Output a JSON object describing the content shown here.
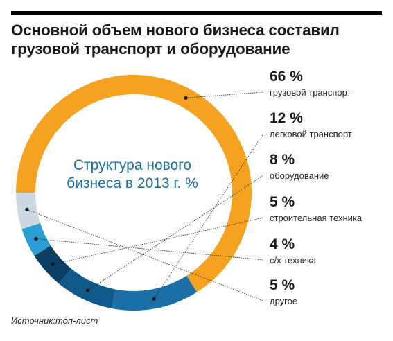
{
  "title_lines": [
    "Основной объем нового бизнеса составил",
    "грузовой транспорт и оборудование"
  ],
  "center_lines": [
    "Структура нового",
    "бизнеса в 2013 г. %"
  ],
  "source": "Источник:топ-лист",
  "chart_data": {
    "type": "pie",
    "variant": "donut",
    "start_angle_deg": 180,
    "direction": "clockwise",
    "series": [
      {
        "label": "грузовой транспорт",
        "value": 66,
        "display": "66 %",
        "color": "#f4a21f"
      },
      {
        "label": "легковой транспорт",
        "value": 12,
        "display": "12 %",
        "color": "#1a6fa6"
      },
      {
        "label": "оборудование",
        "value": 8,
        "display": "8 %",
        "color": "#0f5a8a"
      },
      {
        "label": "строительная техника",
        "value": 5,
        "display": "5 %",
        "color": "#0c3f63"
      },
      {
        "label": "с/х техника",
        "value": 4,
        "display": "4 %",
        "color": "#2a9fd4"
      },
      {
        "label": "другое",
        "value": 5,
        "display": "5 %",
        "color": "#ccd9e3"
      }
    ],
    "extra_segment_color": "#1da1e2"
  }
}
